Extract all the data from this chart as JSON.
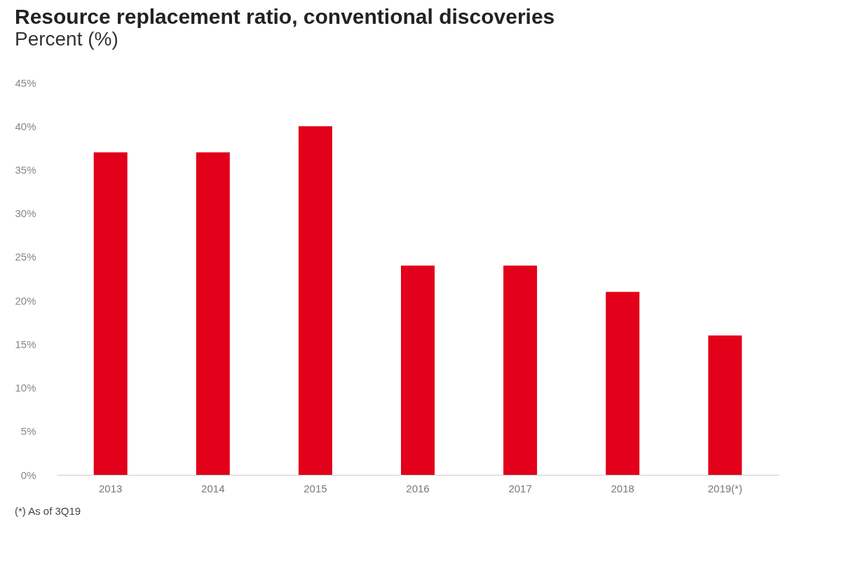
{
  "chart_data": {
    "type": "bar",
    "title": "Resource replacement ratio, conventional discoveries",
    "subtitle": "Percent (%)",
    "categories": [
      "2013",
      "2014",
      "2015",
      "2016",
      "2017",
      "2018",
      "2019(*)"
    ],
    "values": [
      37,
      37,
      40,
      24,
      24,
      21,
      16
    ],
    "color": "#e2001a",
    "ylim": [
      0,
      45
    ],
    "yticks": [
      {
        "value": 0,
        "label": "0%"
      },
      {
        "value": 5,
        "label": "5%"
      },
      {
        "value": 10,
        "label": "10%"
      },
      {
        "value": 15,
        "label": "15%"
      },
      {
        "value": 20,
        "label": "20%"
      },
      {
        "value": 25,
        "label": "25%"
      },
      {
        "value": 30,
        "label": "30%"
      },
      {
        "value": 35,
        "label": "35%"
      },
      {
        "value": 40,
        "label": "40%"
      },
      {
        "value": 45,
        "label": "45%"
      }
    ],
    "grid": false,
    "annotations": [
      "(*) As of 3Q19"
    ]
  }
}
